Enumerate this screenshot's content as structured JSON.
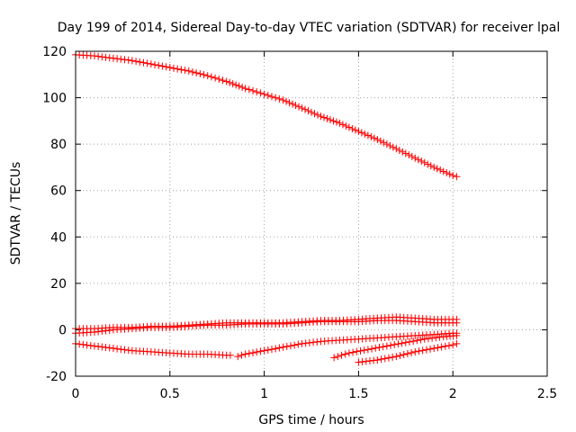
{
  "chart_data": {
    "type": "scatter",
    "title": "Day 199 of 2014, Sidereal Day-to-day VTEC variation (SDTVAR) for receiver lpal",
    "xlabel": "GPS time / hours",
    "ylabel": "SDTVAR / TECUs",
    "xlim": [
      0,
      2.5
    ],
    "ylim": [
      -20,
      120
    ],
    "xticks": [
      0,
      0.5,
      1,
      1.5,
      2,
      2.5
    ],
    "xtick_labels": [
      "0",
      "0.5",
      "1",
      "1.5",
      "2",
      "2.5"
    ],
    "yticks": [
      -20,
      0,
      20,
      40,
      60,
      80,
      100,
      120
    ],
    "ytick_labels": [
      "-20",
      "0",
      "20",
      "40",
      "60",
      "80",
      "100",
      "120"
    ],
    "grid": true,
    "marker": "plus",
    "color": "#ff0000",
    "series": [
      {
        "x": [
          0,
          0.1,
          0.2,
          0.3,
          0.4,
          0.5,
          0.6,
          0.7,
          0.8,
          0.9,
          1.0,
          1.1,
          1.2,
          1.3,
          1.4,
          1.5,
          1.6,
          1.7,
          1.8,
          1.9,
          2.0,
          2.02
        ],
        "y": [
          118.5,
          118,
          117,
          116,
          114.5,
          113,
          111.5,
          109.5,
          107,
          104,
          101.5,
          99,
          95.5,
          92,
          89,
          85.5,
          82,
          78,
          74,
          70,
          66.5,
          66
        ]
      },
      {
        "x": [
          0,
          0.1,
          0.2,
          0.3,
          0.4,
          0.5,
          0.6,
          0.7,
          0.8,
          0.9,
          1.0,
          1.1,
          1.2,
          1.3,
          1.4,
          1.5,
          1.6,
          1.7,
          1.8,
          1.9,
          2.0,
          2.02
        ],
        "y": [
          0.5,
          0.5,
          1,
          1,
          1.5,
          1.5,
          2,
          2.5,
          3,
          3,
          3,
          3,
          3.5,
          4,
          4,
          4.5,
          5,
          5.5,
          5,
          4.5,
          4.5,
          4.5
        ]
      },
      {
        "x": [
          0,
          0.1,
          0.2,
          0.3,
          0.4,
          0.5,
          0.6,
          0.7,
          0.8,
          0.9,
          1.0,
          1.1,
          1.2,
          1.3,
          1.4,
          1.5,
          1.6,
          1.7,
          1.8,
          1.9,
          2.0,
          2.02
        ],
        "y": [
          -1.5,
          -1,
          0,
          0.5,
          1,
          1,
          1.5,
          2,
          2,
          2.5,
          2.5,
          2.5,
          3,
          3.5,
          3.5,
          3.5,
          4,
          4,
          3.5,
          3,
          3,
          3
        ]
      },
      {
        "x": [
          0,
          0.1,
          0.2,
          0.3,
          0.4,
          0.5,
          0.6,
          0.7,
          0.8,
          0.82
        ],
        "y": [
          -6,
          -7,
          -8,
          -9,
          -9.5,
          -10,
          -10.5,
          -10.5,
          -11,
          -11
        ]
      },
      {
        "x": [
          0.86,
          0.9,
          1.0,
          1.1,
          1.2,
          1.3,
          1.4,
          1.5,
          1.6,
          1.7,
          1.8,
          1.9,
          2.0,
          2.02
        ],
        "y": [
          -11.5,
          -10.5,
          -9,
          -7.5,
          -6,
          -5,
          -4.5,
          -4,
          -3.5,
          -3,
          -2.5,
          -2,
          -1.5,
          -1.5
        ]
      },
      {
        "x": [
          1.37,
          1.45,
          1.55,
          1.65,
          1.75,
          1.85,
          1.95,
          2.02
        ],
        "y": [
          -12,
          -10,
          -8.5,
          -7,
          -5.5,
          -4,
          -3,
          -2.5
        ]
      },
      {
        "x": [
          1.5,
          1.6,
          1.7,
          1.8,
          1.9,
          2.0,
          2.02
        ],
        "y": [
          -14,
          -13,
          -11.5,
          -9.5,
          -8,
          -6.5,
          -6
        ]
      }
    ]
  }
}
